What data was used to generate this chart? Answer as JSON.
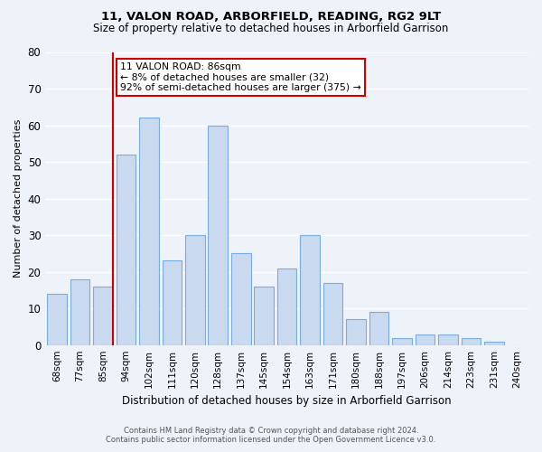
{
  "title1": "11, VALON ROAD, ARBORFIELD, READING, RG2 9LT",
  "title2": "Size of property relative to detached houses in Arborfield Garrison",
  "xlabel": "Distribution of detached houses by size in Arborfield Garrison",
  "ylabel": "Number of detached properties",
  "bar_labels": [
    "68sqm",
    "77sqm",
    "85sqm",
    "94sqm",
    "102sqm",
    "111sqm",
    "120sqm",
    "128sqm",
    "137sqm",
    "145sqm",
    "154sqm",
    "163sqm",
    "171sqm",
    "180sqm",
    "188sqm",
    "197sqm",
    "206sqm",
    "214sqm",
    "223sqm",
    "231sqm",
    "240sqm"
  ],
  "bar_values": [
    14,
    18,
    16,
    52,
    62,
    23,
    30,
    60,
    25,
    16,
    21,
    30,
    17,
    7,
    9,
    2,
    3,
    3,
    2,
    1,
    0
  ],
  "bar_color": "#c9d9f0",
  "bar_edge_color": "#7aacdc",
  "annotation_line1": "11 VALON ROAD: 86sqm",
  "annotation_line2": "← 8% of detached houses are smaller (32)",
  "annotation_line3": "92% of semi-detached houses are larger (375) →",
  "vline_color": "#cc0000",
  "ylim": [
    0,
    80
  ],
  "yticks": [
    0,
    10,
    20,
    30,
    40,
    50,
    60,
    70,
    80
  ],
  "footer_line1": "Contains HM Land Registry data © Crown copyright and database right 2024.",
  "footer_line2": "Contains public sector information licensed under the Open Government Licence v3.0.",
  "bg_color": "#eef2f9",
  "grid_color": "#ffffff",
  "title1_fontsize": 9.5,
  "title2_fontsize": 8.5,
  "ylabel_fontsize": 8.0,
  "xlabel_fontsize": 8.5
}
